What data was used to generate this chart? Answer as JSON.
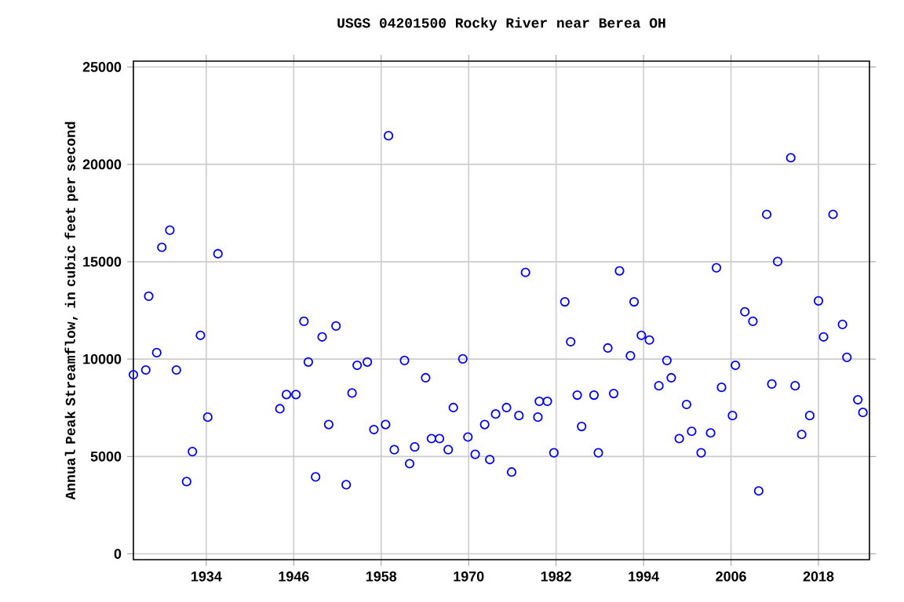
{
  "chart_data": {
    "type": "scatter",
    "title": "USGS 04201500 Rocky River near Berea OH",
    "ylabel": "Annual Peak Streamflow, in cubic feet per second",
    "x": [
      1924.0,
      1925.7,
      1926.1,
      1927.2,
      1927.9,
      1929.0,
      1929.9,
      1931.3,
      1932.1,
      1933.2,
      1934.2,
      1935.6,
      1944.1,
      1945.0,
      1946.3,
      1947.4,
      1948.0,
      1949.0,
      1949.9,
      1950.8,
      1951.8,
      1953.2,
      1954.0,
      1954.7,
      1956.1,
      1957.0,
      1958.6,
      1959.0,
      1959.8,
      1961.2,
      1961.9,
      1962.6,
      1964.1,
      1964.9,
      1966.0,
      1967.2,
      1967.9,
      1969.2,
      1969.9,
      1970.9,
      1972.2,
      1972.9,
      1973.7,
      1975.2,
      1975.9,
      1976.9,
      1977.8,
      1979.5,
      1979.7,
      1980.8,
      1981.7,
      1983.2,
      1984.0,
      1984.9,
      1985.5,
      1987.2,
      1987.8,
      1989.1,
      1989.9,
      1990.7,
      1992.2,
      1992.7,
      1993.7,
      1994.8,
      1996.1,
      1997.2,
      1997.8,
      1998.9,
      1999.9,
      2000.6,
      2001.9,
      2003.2,
      2004.0,
      2004.7,
      2006.2,
      2006.6,
      2007.9,
      2009.0,
      2009.8,
      2010.9,
      2011.6,
      2012.4,
      2014.2,
      2014.8,
      2015.7,
      2016.8,
      2018.0,
      2018.7,
      2020.0,
      2021.3,
      2021.9,
      2023.4,
      2024.1
    ],
    "values": [
      9200,
      9440,
      13230,
      10330,
      15740,
      16620,
      9440,
      3710,
      5250,
      11220,
      7020,
      15410,
      7450,
      8180,
      8180,
      11940,
      9850,
      3950,
      11140,
      6640,
      11700,
      3550,
      8260,
      9680,
      9850,
      6380,
      6640,
      21470,
      5350,
      9930,
      4630,
      5490,
      9040,
      5920,
      5920,
      5350,
      7510,
      10010,
      6000,
      5110,
      6640,
      4840,
      7180,
      7510,
      4200,
      7100,
      14450,
      7020,
      7830,
      7830,
      5190,
      12940,
      10890,
      8150,
      6540,
      8150,
      5190,
      10570,
      8230,
      14530,
      10170,
      12940,
      11220,
      10980,
      8630,
      9930,
      9040,
      5920,
      7670,
      6290,
      5190,
      6210,
      14690,
      8550,
      7100,
      9680,
      12430,
      11940,
      3230,
      17430,
      8720,
      15010,
      20340,
      8630,
      6130,
      7100,
      12990,
      11140,
      17430,
      11780,
      10090,
      7910,
      7260
    ],
    "color": "#0000ff",
    "marker": "circle",
    "grid": true,
    "xlim": [
      1924,
      2025
    ],
    "ylim": [
      -300,
      25300
    ],
    "xticks": [
      1934,
      1946,
      1958,
      1970,
      1982,
      1994,
      2006,
      2018
    ],
    "yticks": [
      0,
      5000,
      10000,
      15000,
      20000,
      25000
    ]
  }
}
